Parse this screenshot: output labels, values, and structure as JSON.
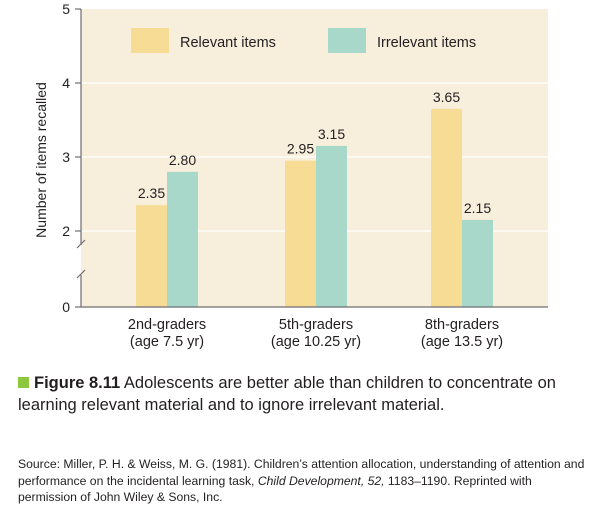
{
  "chart_data": {
    "type": "bar",
    "title": "",
    "xlabel": "",
    "ylabel": "Number of items recalled",
    "ylim": [
      0,
      5
    ],
    "axis_break": true,
    "yticks": [
      "0",
      "2",
      "3",
      "4",
      "5"
    ],
    "categories": [
      [
        "2nd-graders",
        "(age 7.5 yr)"
      ],
      [
        "5th-graders",
        "(age 10.25 yr)"
      ],
      [
        "8th-graders",
        "(age 13.5 yr)"
      ]
    ],
    "series": [
      {
        "name": "Relevant items",
        "values": [
          2.35,
          2.95,
          3.65
        ],
        "labels": [
          "2.35",
          "2.95",
          "3.65"
        ],
        "color": "#f7dc95"
      },
      {
        "name": "Irrelevant items",
        "values": [
          2.8,
          3.15,
          2.15
        ],
        "labels": [
          "2.80",
          "3.15",
          "2.15"
        ],
        "color": "#a7d8c9"
      }
    ],
    "legend": "top",
    "background": "#f8eedc"
  },
  "caption": {
    "figure_label": "Figure 8.11",
    "text": " Adolescents are better able than children to concentrate on learning relevant material and to ignore irrelevant material."
  },
  "source": {
    "prefix": "Source: Miller, P. H. & Weiss, M. G. (1981). Children’s attention allocation, understanding of attention and performance on the incidental learning task, ",
    "journal": "Child Development, 52,",
    "suffix": " 1183–1190. Reprinted with permission of John Wiley & Sons, Inc."
  }
}
